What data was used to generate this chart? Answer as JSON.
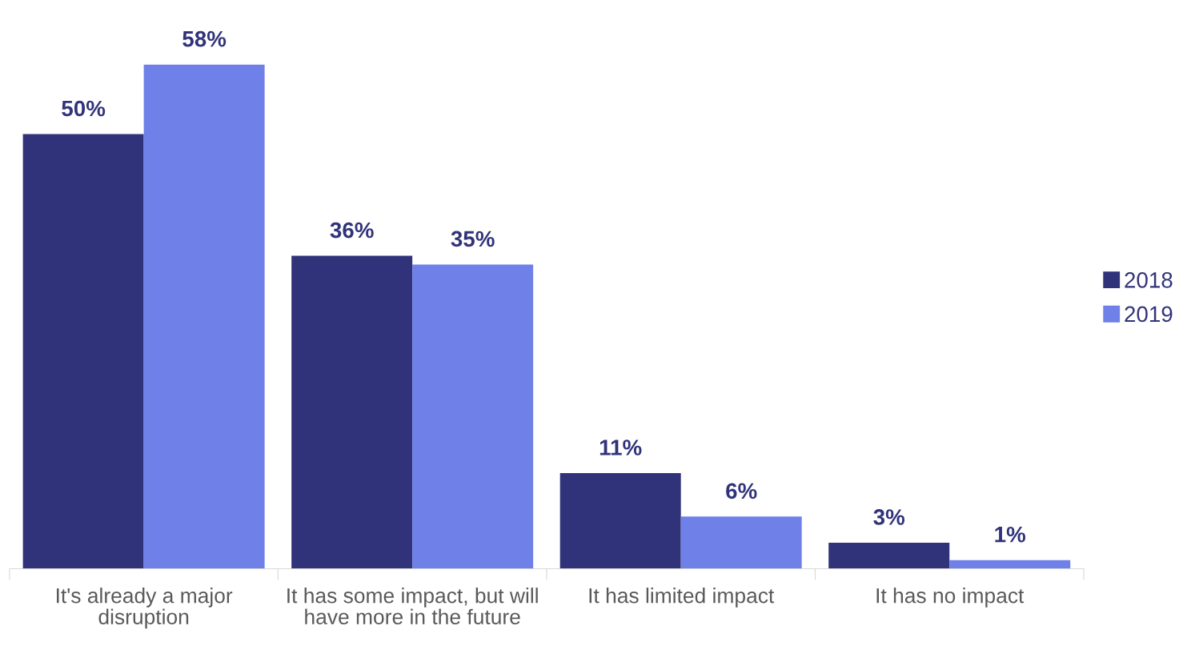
{
  "chart_data": {
    "type": "bar",
    "categories": [
      "It's already a major disruption",
      "It has some impact, but will have more in the future",
      "It has limited impact",
      "It has no impact"
    ],
    "series": [
      {
        "name": "2018",
        "color": "#31337a",
        "values": [
          50,
          36,
          11,
          3
        ],
        "value_labels": [
          "50%",
          "36%",
          "11%",
          "3%"
        ]
      },
      {
        "name": "2019",
        "color": "#6f80e8",
        "values": [
          58,
          35,
          6,
          1
        ],
        "value_labels": [
          "58%",
          "35%",
          "6%",
          "1%"
        ]
      }
    ],
    "legend": "right",
    "grid": false
  }
}
